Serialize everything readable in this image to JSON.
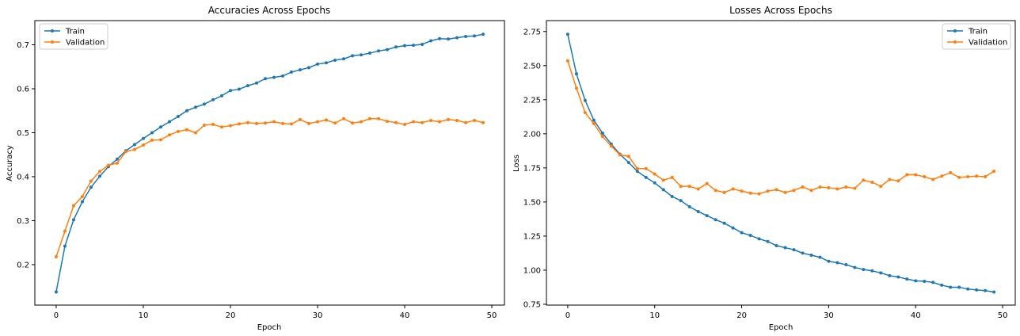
{
  "chart_data": [
    {
      "type": "line",
      "title": "Accuracies Across Epochs",
      "xlabel": "Epoch",
      "ylabel": "Accuracy",
      "xlim": [
        -2.45,
        51.45
      ],
      "ylim": [
        0.108,
        0.755
      ],
      "xticks": [
        0,
        10,
        20,
        30,
        40,
        50
      ],
      "xtick_labels": [
        "0",
        "10",
        "20",
        "30",
        "40",
        "50"
      ],
      "yticks": [
        0.2,
        0.3,
        0.4,
        0.5,
        0.6,
        0.7
      ],
      "ytick_labels": [
        "0.2",
        "0.3",
        "0.4",
        "0.5",
        "0.6",
        "0.7"
      ],
      "legend_position": "upper left",
      "grid": false,
      "x": [
        0,
        1,
        2,
        3,
        4,
        5,
        6,
        7,
        8,
        9,
        10,
        11,
        12,
        13,
        14,
        15,
        16,
        17,
        18,
        19,
        20,
        21,
        22,
        23,
        24,
        25,
        26,
        27,
        28,
        29,
        30,
        31,
        32,
        33,
        34,
        35,
        36,
        37,
        38,
        39,
        40,
        41,
        42,
        43,
        44,
        45,
        46,
        47,
        48,
        49
      ],
      "series": [
        {
          "name": "Train",
          "color": "#1f77b4",
          "values": [
            0.138,
            0.242,
            0.302,
            0.343,
            0.376,
            0.401,
            0.423,
            0.44,
            0.459,
            0.473,
            0.487,
            0.5,
            0.513,
            0.525,
            0.537,
            0.55,
            0.558,
            0.565,
            0.575,
            0.584,
            0.596,
            0.599,
            0.607,
            0.613,
            0.623,
            0.626,
            0.629,
            0.638,
            0.643,
            0.648,
            0.656,
            0.659,
            0.665,
            0.668,
            0.675,
            0.677,
            0.681,
            0.686,
            0.689,
            0.695,
            0.698,
            0.699,
            0.701,
            0.709,
            0.714,
            0.713,
            0.716,
            0.719,
            0.72,
            0.724
          ]
        },
        {
          "name": "Validation",
          "color": "#ff7f0e",
          "values": [
            0.218,
            0.276,
            0.334,
            0.355,
            0.39,
            0.412,
            0.426,
            0.431,
            0.457,
            0.462,
            0.472,
            0.483,
            0.484,
            0.495,
            0.503,
            0.507,
            0.5,
            0.517,
            0.519,
            0.513,
            0.516,
            0.52,
            0.523,
            0.521,
            0.522,
            0.525,
            0.521,
            0.52,
            0.53,
            0.521,
            0.525,
            0.529,
            0.522,
            0.532,
            0.522,
            0.525,
            0.532,
            0.532,
            0.526,
            0.523,
            0.519,
            0.525,
            0.523,
            0.528,
            0.525,
            0.53,
            0.528,
            0.523,
            0.528,
            0.523
          ]
        }
      ]
    },
    {
      "type": "line",
      "title": "Losses Across Epochs",
      "xlabel": "Epoch",
      "ylabel": "Loss",
      "xlim": [
        -2.45,
        51.45
      ],
      "ylim": [
        0.744,
        2.83
      ],
      "xticks": [
        0,
        10,
        20,
        30,
        40,
        50
      ],
      "xtick_labels": [
        "0",
        "10",
        "20",
        "30",
        "40",
        "50"
      ],
      "yticks": [
        0.75,
        1.0,
        1.25,
        1.5,
        1.75,
        2.0,
        2.25,
        2.5,
        2.75
      ],
      "ytick_labels": [
        "0.75",
        "1.00",
        "1.25",
        "1.50",
        "1.75",
        "2.00",
        "2.25",
        "2.50",
        "2.75"
      ],
      "legend_position": "upper right",
      "grid": false,
      "x": [
        0,
        1,
        2,
        3,
        4,
        5,
        6,
        7,
        8,
        9,
        10,
        11,
        12,
        13,
        14,
        15,
        16,
        17,
        18,
        19,
        20,
        21,
        22,
        23,
        24,
        25,
        26,
        27,
        28,
        29,
        30,
        31,
        32,
        33,
        34,
        35,
        36,
        37,
        38,
        39,
        40,
        41,
        42,
        43,
        44,
        45,
        46,
        47,
        48,
        49
      ],
      "series": [
        {
          "name": "Train",
          "color": "#1f77b4",
          "values": [
            2.73,
            2.44,
            2.245,
            2.1,
            2.005,
            1.925,
            1.85,
            1.79,
            1.725,
            1.68,
            1.64,
            1.59,
            1.54,
            1.51,
            1.465,
            1.43,
            1.4,
            1.37,
            1.345,
            1.31,
            1.275,
            1.255,
            1.23,
            1.21,
            1.18,
            1.165,
            1.15,
            1.125,
            1.11,
            1.095,
            1.065,
            1.055,
            1.04,
            1.02,
            1.005,
            0.995,
            0.98,
            0.96,
            0.95,
            0.935,
            0.922,
            0.918,
            0.91,
            0.89,
            0.875,
            0.875,
            0.862,
            0.855,
            0.85,
            0.84
          ]
        },
        {
          "name": "Validation",
          "color": "#ff7f0e",
          "values": [
            2.535,
            2.335,
            2.155,
            2.075,
            1.98,
            1.91,
            1.845,
            1.835,
            1.745,
            1.745,
            1.705,
            1.66,
            1.68,
            1.615,
            1.615,
            1.595,
            1.635,
            1.585,
            1.57,
            1.595,
            1.58,
            1.565,
            1.56,
            1.58,
            1.59,
            1.57,
            1.585,
            1.61,
            1.585,
            1.61,
            1.605,
            1.595,
            1.61,
            1.6,
            1.66,
            1.645,
            1.615,
            1.665,
            1.655,
            1.7,
            1.7,
            1.685,
            1.665,
            1.69,
            1.715,
            1.68,
            1.685,
            1.69,
            1.685,
            1.725
          ]
        }
      ]
    }
  ]
}
